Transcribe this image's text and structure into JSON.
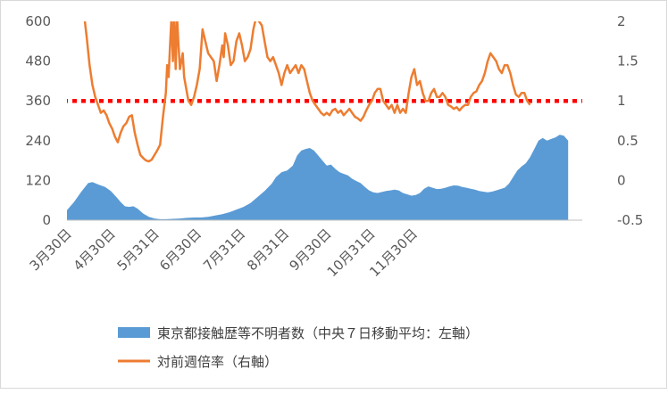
{
  "chart_data": {
    "type": "area+line",
    "title": "",
    "series": [
      {
        "name": "東京都接触歴等不明者数（中央７日移動平均：左軸）",
        "type": "area",
        "axis": "left",
        "color": "#5b9bd5",
        "points": [
          [
            0,
            30
          ],
          [
            5,
            55
          ],
          [
            10,
            85
          ],
          [
            15,
            112
          ],
          [
            18,
            115
          ],
          [
            22,
            108
          ],
          [
            27,
            100
          ],
          [
            31,
            88
          ],
          [
            35,
            70
          ],
          [
            38,
            55
          ],
          [
            41,
            42
          ],
          [
            44,
            40
          ],
          [
            47,
            42
          ],
          [
            50,
            35
          ],
          [
            54,
            20
          ],
          [
            58,
            10
          ],
          [
            62,
            5
          ],
          [
            66,
            3
          ],
          [
            70,
            3
          ],
          [
            75,
            4
          ],
          [
            80,
            5
          ],
          [
            85,
            7
          ],
          [
            90,
            8
          ],
          [
            95,
            8
          ],
          [
            100,
            10
          ],
          [
            105,
            14
          ],
          [
            110,
            18
          ],
          [
            115,
            24
          ],
          [
            120,
            32
          ],
          [
            125,
            40
          ],
          [
            130,
            52
          ],
          [
            135,
            70
          ],
          [
            140,
            88
          ],
          [
            145,
            110
          ],
          [
            148,
            130
          ],
          [
            152,
            145
          ],
          [
            156,
            150
          ],
          [
            160,
            165
          ],
          [
            163,
            195
          ],
          [
            166,
            210
          ],
          [
            169,
            215
          ],
          [
            172,
            218
          ],
          [
            175,
            210
          ],
          [
            178,
            195
          ],
          [
            181,
            180
          ],
          [
            184,
            165
          ],
          [
            187,
            168
          ],
          [
            190,
            155
          ],
          [
            193,
            145
          ],
          [
            196,
            140
          ],
          [
            199,
            135
          ],
          [
            202,
            125
          ],
          [
            205,
            118
          ],
          [
            208,
            112
          ],
          [
            211,
            100
          ],
          [
            214,
            90
          ],
          [
            217,
            84
          ],
          [
            220,
            82
          ],
          [
            223,
            85
          ],
          [
            226,
            88
          ],
          [
            229,
            90
          ],
          [
            232,
            92
          ],
          [
            235,
            90
          ],
          [
            238,
            82
          ],
          [
            241,
            78
          ],
          [
            244,
            74
          ],
          [
            247,
            76
          ],
          [
            250,
            82
          ],
          [
            253,
            95
          ],
          [
            256,
            102
          ],
          [
            259,
            98
          ],
          [
            262,
            94
          ],
          [
            265,
            95
          ],
          [
            268,
            98
          ],
          [
            271,
            102
          ],
          [
            274,
            105
          ],
          [
            277,
            104
          ],
          [
            280,
            100
          ],
          [
            283,
            98
          ],
          [
            286,
            95
          ],
          [
            289,
            92
          ],
          [
            292,
            88
          ],
          [
            295,
            86
          ],
          [
            298,
            84
          ],
          [
            301,
            86
          ],
          [
            304,
            90
          ],
          [
            307,
            94
          ],
          [
            310,
            98
          ],
          [
            313,
            110
          ],
          [
            316,
            130
          ],
          [
            319,
            150
          ],
          [
            322,
            162
          ],
          [
            325,
            172
          ],
          [
            328,
            190
          ],
          [
            331,
            215
          ],
          [
            334,
            240
          ],
          [
            337,
            248
          ],
          [
            340,
            240
          ],
          [
            343,
            245
          ],
          [
            346,
            250
          ],
          [
            349,
            258
          ],
          [
            352,
            255
          ],
          [
            355,
            240
          ]
        ]
      },
      {
        "name": "対前週倍率（右軸）",
        "type": "line",
        "axis": "right",
        "color": "#ed7d31",
        "points": [
          [
            12,
            2.1
          ],
          [
            14,
            1.8
          ],
          [
            16,
            1.45
          ],
          [
            18,
            1.2
          ],
          [
            20,
            1.05
          ],
          [
            22,
            0.95
          ],
          [
            24,
            0.85
          ],
          [
            26,
            0.88
          ],
          [
            28,
            0.82
          ],
          [
            30,
            0.72
          ],
          [
            32,
            0.65
          ],
          [
            34,
            0.55
          ],
          [
            36,
            0.48
          ],
          [
            38,
            0.6
          ],
          [
            40,
            0.68
          ],
          [
            42,
            0.72
          ],
          [
            44,
            0.8
          ],
          [
            46,
            0.82
          ],
          [
            48,
            0.6
          ],
          [
            50,
            0.45
          ],
          [
            52,
            0.32
          ],
          [
            54,
            0.28
          ],
          [
            56,
            0.25
          ],
          [
            58,
            0.24
          ],
          [
            60,
            0.26
          ],
          [
            62,
            0.32
          ],
          [
            64,
            0.38
          ],
          [
            66,
            0.45
          ],
          [
            68,
            0.8
          ],
          [
            70,
            1.1
          ],
          [
            71,
            1.45
          ],
          [
            72,
            1.3
          ],
          [
            73,
            1.7
          ],
          [
            74,
            2.05
          ],
          [
            75,
            1.5
          ],
          [
            76,
            2.1
          ],
          [
            77,
            1.4
          ],
          [
            78,
            2.05
          ],
          [
            79,
            1.7
          ],
          [
            80,
            1.4
          ],
          [
            82,
            1.6
          ],
          [
            83,
            1.3
          ],
          [
            84,
            1.2
          ],
          [
            85,
            1.1
          ],
          [
            86,
            1.0
          ],
          [
            88,
            0.95
          ],
          [
            90,
            1.05
          ],
          [
            92,
            1.2
          ],
          [
            94,
            1.4
          ],
          [
            96,
            1.9
          ],
          [
            98,
            1.75
          ],
          [
            100,
            1.6
          ],
          [
            102,
            1.55
          ],
          [
            104,
            1.5
          ],
          [
            106,
            1.25
          ],
          [
            108,
            1.45
          ],
          [
            110,
            1.7
          ],
          [
            111,
            1.55
          ],
          [
            112,
            1.85
          ],
          [
            114,
            1.7
          ],
          [
            116,
            1.45
          ],
          [
            118,
            1.5
          ],
          [
            120,
            1.75
          ],
          [
            122,
            1.85
          ],
          [
            124,
            1.7
          ],
          [
            126,
            1.5
          ],
          [
            128,
            1.55
          ],
          [
            130,
            1.65
          ],
          [
            132,
            1.9
          ],
          [
            134,
            2.05
          ],
          [
            136,
            2.0
          ],
          [
            138,
            1.95
          ],
          [
            140,
            1.75
          ],
          [
            142,
            1.55
          ],
          [
            144,
            1.5
          ],
          [
            146,
            1.55
          ],
          [
            148,
            1.45
          ],
          [
            150,
            1.35
          ],
          [
            152,
            1.2
          ],
          [
            154,
            1.35
          ],
          [
            156,
            1.45
          ],
          [
            158,
            1.35
          ],
          [
            160,
            1.4
          ],
          [
            162,
            1.45
          ],
          [
            164,
            1.35
          ],
          [
            166,
            1.45
          ],
          [
            168,
            1.4
          ],
          [
            170,
            1.25
          ],
          [
            172,
            1.1
          ],
          [
            174,
            1.0
          ],
          [
            176,
            0.95
          ],
          [
            178,
            0.9
          ],
          [
            180,
            0.85
          ],
          [
            182,
            0.82
          ],
          [
            184,
            0.85
          ],
          [
            186,
            0.82
          ],
          [
            188,
            0.88
          ],
          [
            190,
            0.9
          ],
          [
            192,
            0.85
          ],
          [
            194,
            0.88
          ],
          [
            196,
            0.82
          ],
          [
            198,
            0.86
          ],
          [
            200,
            0.9
          ],
          [
            202,
            0.85
          ],
          [
            204,
            0.8
          ],
          [
            206,
            0.78
          ],
          [
            208,
            0.75
          ],
          [
            210,
            0.8
          ],
          [
            212,
            0.88
          ],
          [
            214,
            0.95
          ],
          [
            216,
            1.0
          ],
          [
            218,
            1.1
          ],
          [
            220,
            1.15
          ],
          [
            222,
            1.15
          ],
          [
            224,
            1.0
          ],
          [
            226,
            0.95
          ],
          [
            228,
            0.9
          ],
          [
            230,
            0.95
          ],
          [
            232,
            0.85
          ],
          [
            234,
            0.95
          ],
          [
            236,
            0.85
          ],
          [
            238,
            0.9
          ],
          [
            240,
            0.85
          ],
          [
            242,
            1.1
          ],
          [
            244,
            1.3
          ],
          [
            246,
            1.4
          ],
          [
            248,
            1.2
          ],
          [
            250,
            1.25
          ],
          [
            252,
            1.1
          ],
          [
            254,
            1.0
          ],
          [
            256,
            1.0
          ],
          [
            258,
            1.1
          ],
          [
            260,
            1.15
          ],
          [
            262,
            1.05
          ],
          [
            264,
            1.05
          ],
          [
            266,
            1.1
          ],
          [
            268,
            1.05
          ],
          [
            270,
            0.95
          ],
          [
            272,
            0.93
          ],
          [
            274,
            0.9
          ],
          [
            276,
            0.92
          ],
          [
            278,
            0.88
          ],
          [
            280,
            0.92
          ],
          [
            282,
            0.95
          ],
          [
            284,
            0.95
          ],
          [
            286,
            1.05
          ],
          [
            288,
            1.1
          ],
          [
            290,
            1.12
          ],
          [
            292,
            1.2
          ],
          [
            294,
            1.25
          ],
          [
            296,
            1.35
          ],
          [
            298,
            1.5
          ],
          [
            300,
            1.6
          ],
          [
            302,
            1.55
          ],
          [
            304,
            1.5
          ],
          [
            306,
            1.4
          ],
          [
            308,
            1.35
          ],
          [
            310,
            1.45
          ],
          [
            312,
            1.45
          ],
          [
            314,
            1.35
          ],
          [
            316,
            1.2
          ],
          [
            318,
            1.08
          ],
          [
            320,
            1.05
          ],
          [
            322,
            1.1
          ],
          [
            324,
            1.1
          ],
          [
            326,
            1.0
          ],
          [
            328,
            0.95
          ]
        ]
      },
      {
        "name": "reference",
        "type": "line",
        "axis": "right",
        "style": "dotted",
        "color": "#ff0000",
        "y": 1
      }
    ],
    "x_axis": {
      "tick_labels": [
        "3月30日",
        "4月30日",
        "5月31日",
        "6月30日",
        "7月31日",
        "8月31日",
        "9月30日",
        "10月31日",
        "11月30日"
      ],
      "tick_days": [
        0,
        31,
        62,
        92,
        123,
        154,
        184,
        215,
        245
      ]
    },
    "y_left": {
      "ylim": [
        0,
        600
      ],
      "ticks": [
        0,
        120,
        240,
        360,
        480,
        600
      ]
    },
    "y_right": {
      "ylim": [
        -0.5,
        2
      ],
      "ticks": [
        "-0.5",
        "0",
        "0.5",
        "1",
        "1.5",
        "2"
      ]
    },
    "grid": false,
    "legend_position": "bottom"
  }
}
